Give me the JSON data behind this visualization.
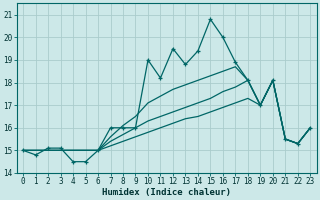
{
  "xlabel": "Humidex (Indice chaleur)",
  "background_color": "#cce8e8",
  "grid_color": "#aacccc",
  "line_color": "#006666",
  "ylim": [
    14,
    21.5
  ],
  "xlim": [
    -0.5,
    23.5
  ],
  "yticks": [
    14,
    15,
    16,
    17,
    18,
    19,
    20,
    21
  ],
  "xticks": [
    0,
    1,
    2,
    3,
    4,
    5,
    6,
    7,
    8,
    9,
    10,
    11,
    12,
    13,
    14,
    15,
    16,
    17,
    18,
    19,
    20,
    21,
    22,
    23
  ],
  "series": [
    [
      15.0,
      14.8,
      15.1,
      15.1,
      14.5,
      14.5,
      15.0,
      16.0,
      16.0,
      16.0,
      19.0,
      18.2,
      19.5,
      18.8,
      19.4,
      20.8,
      20.0,
      18.9,
      18.1,
      17.0,
      18.1,
      15.5,
      15.3,
      16.0
    ],
    [
      15.0,
      15.0,
      15.0,
      15.0,
      15.0,
      15.0,
      15.0,
      15.6,
      16.1,
      16.5,
      17.1,
      17.4,
      17.7,
      17.9,
      18.1,
      18.3,
      18.5,
      18.7,
      18.1,
      17.0,
      18.1,
      15.5,
      15.3,
      16.0
    ],
    [
      15.0,
      15.0,
      15.0,
      15.0,
      15.0,
      15.0,
      15.0,
      15.4,
      15.7,
      16.0,
      16.3,
      16.5,
      16.7,
      16.9,
      17.1,
      17.3,
      17.6,
      17.8,
      18.1,
      17.0,
      18.1,
      15.5,
      15.3,
      16.0
    ],
    [
      15.0,
      15.0,
      15.0,
      15.0,
      15.0,
      15.0,
      15.0,
      15.2,
      15.4,
      15.6,
      15.8,
      16.0,
      16.2,
      16.4,
      16.5,
      16.7,
      16.9,
      17.1,
      17.3,
      17.0,
      18.1,
      15.5,
      15.3,
      16.0
    ]
  ]
}
